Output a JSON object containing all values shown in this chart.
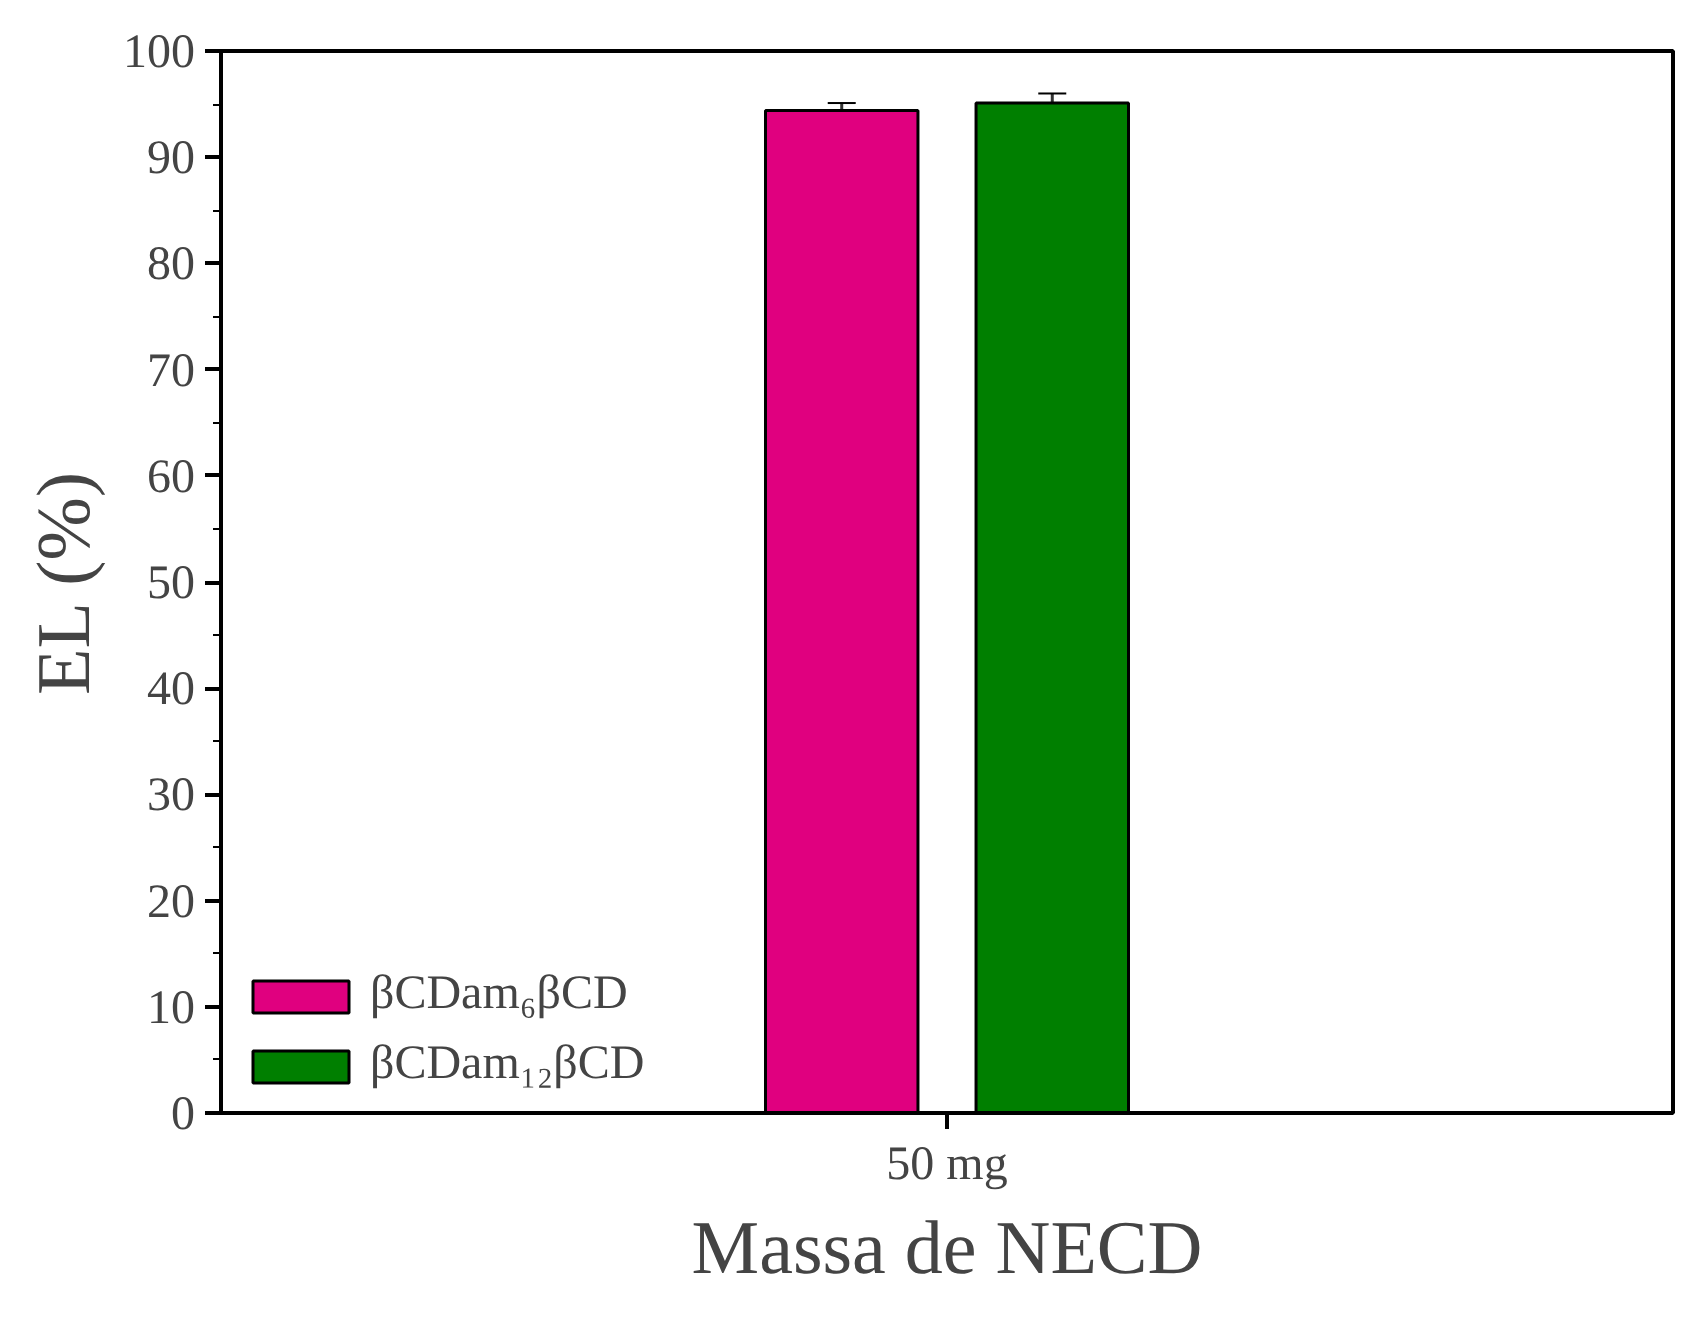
{
  "chart_data": {
    "type": "bar",
    "xlabel": "Massa de NECD",
    "ylabel": "EL (%)",
    "categories": [
      "50 mg"
    ],
    "series": [
      {
        "name": "βCDam₆βCD",
        "color": "#e0007f",
        "values": [
          94.4
        ],
        "errors": [
          0.7
        ]
      },
      {
        "name": "βCDam₁₂βCD",
        "color": "#007f00",
        "values": [
          95.1
        ],
        "errors": [
          0.9
        ]
      }
    ],
    "ylim": [
      0,
      100
    ],
    "yticks": [
      0,
      10,
      20,
      30,
      40,
      50,
      60,
      70,
      80,
      90,
      100
    ],
    "grid": false,
    "legend": "bottom left"
  }
}
